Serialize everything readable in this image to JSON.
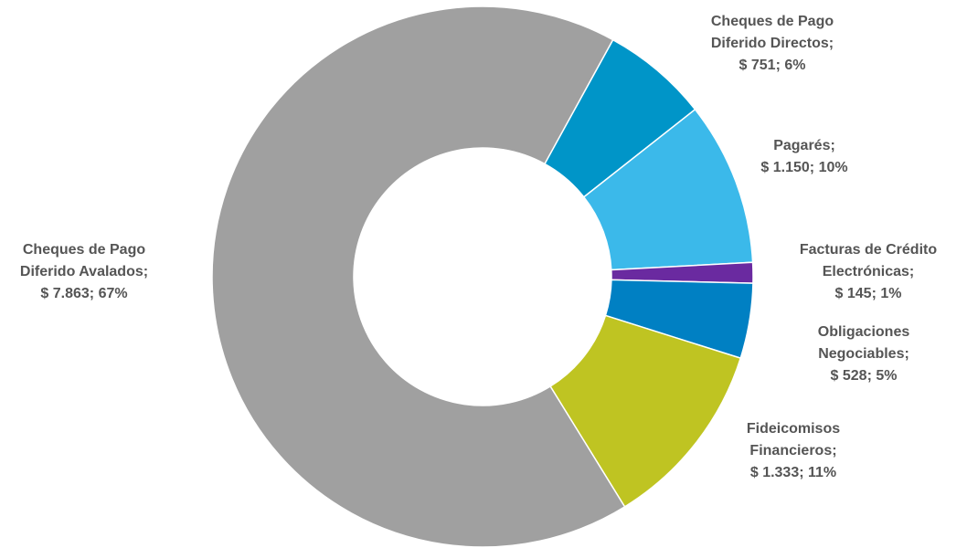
{
  "chart_data": {
    "type": "donut",
    "categories": [
      "Cheques de Pago Diferido Directos;",
      "Pagarés;",
      "Facturas de Crédito Electrónicas;",
      "Obligaciones Negociables;",
      "Fideicomisos Financieros;",
      "Cheques de Pago Diferido Avalados;"
    ],
    "values": [
      751,
      1150,
      145,
      528,
      1333,
      7863
    ],
    "value_labels": [
      "$ 751; 6%",
      "$ 1.150; 10%",
      "$ 145; 1%",
      "$ 528; 5%",
      "$ 1.333; 11%",
      "$ 7.863; 67%"
    ],
    "colors": [
      "#0095c8",
      "#3bb9ea",
      "#6a2aa0",
      "#0080c3",
      "#bfc422",
      "#a0a0a0"
    ]
  }
}
